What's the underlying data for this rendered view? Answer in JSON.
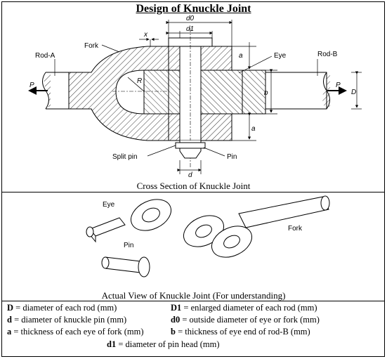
{
  "title": "Design of Knuckle Joint",
  "cross_section": {
    "caption": "Cross Section of Knuckle Joint",
    "labels": {
      "fork": "Fork",
      "eye": "Eye",
      "rod_a": "Rod-A",
      "rod_b": "Rod-B",
      "split_pin": "Split pin",
      "pin": "Pin",
      "P_left": "P",
      "P_right": "P",
      "D": "D",
      "R": "R",
      "x": "x",
      "d0": "d0",
      "d1": "d1",
      "d": "d",
      "a_top": "a",
      "a_bottom": "a",
      "b": "b"
    }
  },
  "actual_view": {
    "caption": "Actual View of Knuckle Joint (For understanding)",
    "labels": {
      "eye": "Eye",
      "fork": "Fork",
      "pin": "Pin"
    }
  },
  "legend": [
    {
      "sym": "D",
      "text": " = diameter of each rod (mm)"
    },
    {
      "sym": "D1",
      "text": " = enlarged diameter of each rod (mm)"
    },
    {
      "sym": "d",
      "text": " = diameter of knuckle pin (mm)"
    },
    {
      "sym": "d0",
      "text": " = outside diameter of eye or fork (mm)"
    },
    {
      "sym": "a",
      "text": " = thickness of each eye of fork (mm)"
    },
    {
      "sym": "b",
      "text": " = thickness of eye end of rod-B (mm)"
    },
    {
      "sym": "d1",
      "text": " = diameter of pin head (mm)"
    }
  ]
}
